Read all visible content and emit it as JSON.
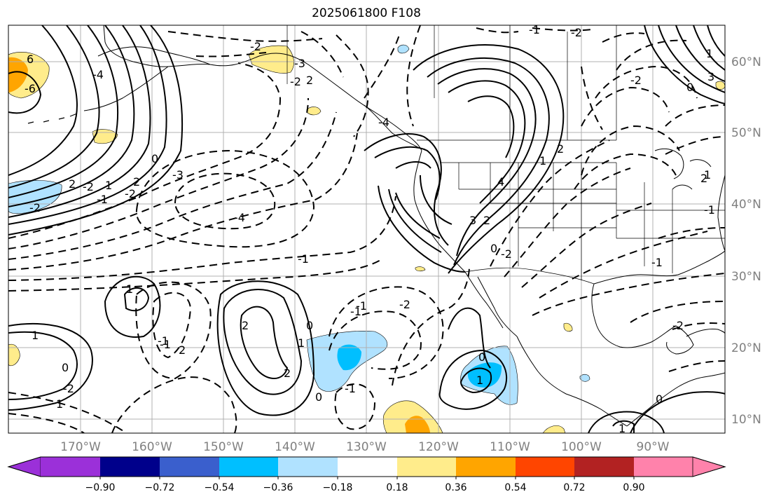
{
  "title": "2025061800 F108",
  "lat_labels": [
    "60°N",
    "50°N",
    "40°N",
    "30°N",
    "20°N",
    "10°N"
  ],
  "lon_labels": [
    "170°W",
    "160°W",
    "150°W",
    "140°W",
    "130°W",
    "120°W",
    "110°W",
    "100°W",
    "90°W"
  ],
  "contour_labels": [
    "6",
    "-6",
    "-4",
    "2",
    "-2",
    "-1",
    "0",
    "-3",
    "-2",
    "-4",
    "-2",
    "2",
    "-2",
    "-1",
    "-2",
    "1",
    "1",
    "1",
    "3",
    "3",
    "4",
    "-2",
    "2",
    "-1",
    "0",
    "1",
    "-2",
    "1",
    "-1",
    "2",
    "-2",
    "2",
    "0",
    "-1",
    "-2",
    "2",
    "-2",
    "2",
    "-1",
    "2",
    "0",
    "-2",
    "0",
    "1",
    "1",
    "-3",
    "1",
    "-1",
    "0",
    "-4",
    "-1",
    "1",
    "2",
    "1",
    "-1",
    "0",
    "-1",
    "0"
  ],
  "colorbar": {
    "ticks": [
      "−0.90",
      "−0.72",
      "−0.54",
      "−0.36",
      "−0.18",
      "0.18",
      "0.36",
      "0.54",
      "0.72",
      "0.90"
    ],
    "colors": [
      "#9b30d9",
      "#00008b",
      "#3a5fcd",
      "#00bfff",
      "#b0e2ff",
      "#ffffff",
      "#ffec8b",
      "#ffa500",
      "#ff4500",
      "#b22222",
      "#ff82ab"
    ]
  }
}
